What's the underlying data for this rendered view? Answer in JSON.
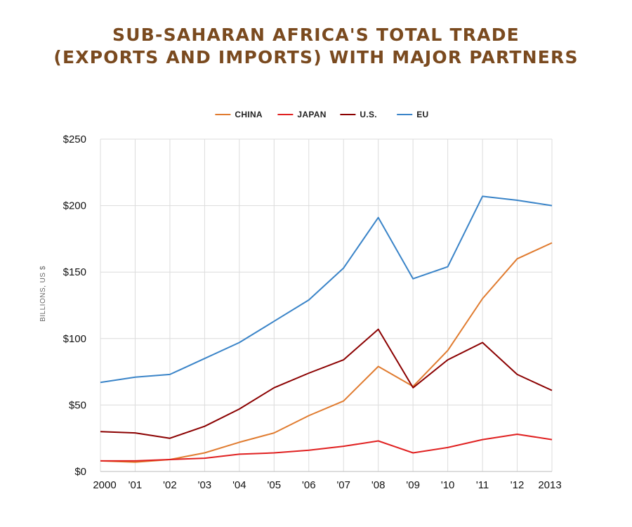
{
  "chart_data": {
    "type": "line",
    "title": [
      "SUB-SAHARAN AFRICA'S TOTAL TRADE",
      "(EXPORTS AND IMPORTS) WITH MAJOR PARTNERS"
    ],
    "xlabel": "",
    "ylabel": "BILLIONS, US $",
    "categories": [
      "2000",
      "'01",
      "'02",
      "'03",
      "'04",
      "'05",
      "'06",
      "'07",
      "'08",
      "'09",
      "'10",
      "'11",
      "'12",
      "2013"
    ],
    "y_tick_labels": [
      "$0",
      "$50",
      "$100",
      "$150",
      "$200",
      "$250"
    ],
    "y_ticks": [
      0,
      50,
      100,
      150,
      200,
      250
    ],
    "ylim": [
      0,
      250
    ],
    "grid": true,
    "legend_position": "top-center",
    "series": [
      {
        "name": "CHINA",
        "color": "#e07b2f",
        "values": [
          8,
          7,
          9,
          14,
          22,
          29,
          42,
          53,
          79,
          64,
          91,
          130,
          160,
          172
        ]
      },
      {
        "name": "JAPAN",
        "color": "#e02020",
        "values": [
          8,
          8,
          9,
          10,
          13,
          14,
          16,
          19,
          23,
          14,
          18,
          24,
          28,
          24
        ]
      },
      {
        "name": "U.S.",
        "color": "#8b0000",
        "values": [
          30,
          29,
          25,
          34,
          47,
          63,
          74,
          84,
          107,
          63,
          84,
          97,
          73,
          61
        ]
      },
      {
        "name": "EU",
        "color": "#3a84c8",
        "values": [
          67,
          71,
          73,
          85,
          97,
          113,
          129,
          153,
          191,
          145,
          154,
          207,
          204,
          200
        ]
      }
    ]
  }
}
